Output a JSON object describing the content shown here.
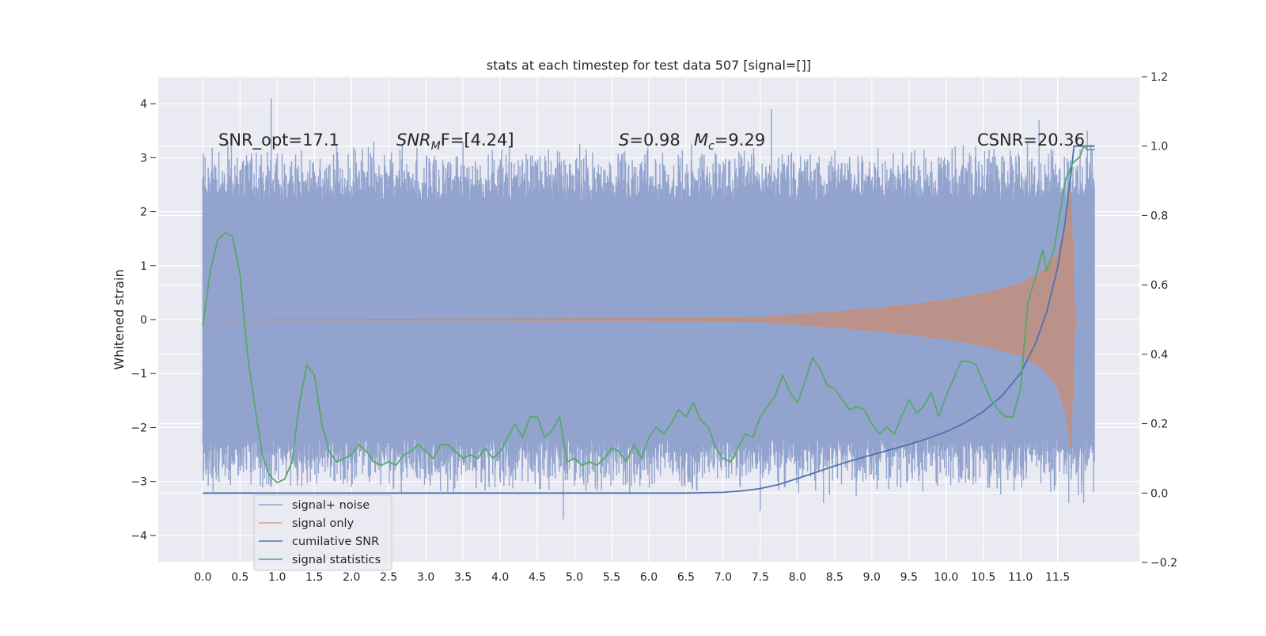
{
  "chart_data": {
    "type": "line",
    "title": "stats at each timestep for test data 507 [signal=[]]",
    "xlabel": "",
    "ylabel": "Whitened strain",
    "y2label": "",
    "xlim": [
      -0.6,
      12.6
    ],
    "ylim": [
      -4.5,
      4.5
    ],
    "y2lim": [
      -0.2,
      1.2
    ],
    "xticks": [
      "0.0",
      "0.5",
      "1.0",
      "1.5",
      "2.0",
      "2.5",
      "3.0",
      "3.5",
      "4.0",
      "4.5",
      "5.0",
      "5.5",
      "6.0",
      "6.5",
      "7.0",
      "7.5",
      "8.0",
      "8.5",
      "9.0",
      "9.5",
      "10.0",
      "10.5",
      "11.0",
      "11.5"
    ],
    "yticks": [
      "4",
      "3",
      "2",
      "1",
      "0",
      "−1",
      "−2",
      "−3",
      "−4"
    ],
    "y2ticks": [
      "1.2",
      "1.0",
      "0.8",
      "0.6",
      "0.4",
      "0.2",
      "0.0",
      "−0.2"
    ],
    "grid": true,
    "legend_position": "lower-left",
    "annotations": {
      "snr_opt": "SNR_opt=17.1",
      "snr_mf_base": "SNR",
      "snr_mf_sub": "M",
      "snr_mf_rest": "F=[4.24]",
      "s_label": "S",
      "s_value": "=0.98",
      "mc_base": "M",
      "mc_sub": "c",
      "mc_value": "=9.29",
      "csnr": "CSNR=20.36"
    },
    "series": [
      {
        "name": "signal+ noise",
        "axis": "left",
        "color": "#8da0cb",
        "noise_envelope": {
          "core_abs": 2.2,
          "peak_abs": 3.3
        },
        "max_points": [
          {
            "x": 0.92,
            "y": 4.1
          },
          {
            "x": 2.3,
            "y": 3.3
          },
          {
            "x": 3.5,
            "y": 3.3
          },
          {
            "x": 7.65,
            "y": 3.9
          },
          {
            "x": 11.25,
            "y": 3.7
          },
          {
            "x": 11.9,
            "y": 3.5
          }
        ],
        "min_points": [
          {
            "x": 4.85,
            "y": -3.7
          },
          {
            "x": 7.5,
            "y": -3.55
          },
          {
            "x": 8.35,
            "y": -3.4
          },
          {
            "x": 11.65,
            "y": -3.4
          },
          {
            "x": 11.85,
            "y": -3.4
          },
          {
            "x": 2.0,
            "y": -3.1
          }
        ]
      },
      {
        "name": "signal only",
        "axis": "left",
        "color": "#dd8452",
        "envelope": [
          {
            "x": 0.0,
            "a": 0.0
          },
          {
            "x": 7.0,
            "a": 0.02
          },
          {
            "x": 7.5,
            "a": 0.04
          },
          {
            "x": 8.0,
            "a": 0.09
          },
          {
            "x": 8.5,
            "a": 0.14
          },
          {
            "x": 9.0,
            "a": 0.2
          },
          {
            "x": 9.5,
            "a": 0.27
          },
          {
            "x": 10.0,
            "a": 0.36
          },
          {
            "x": 10.5,
            "a": 0.47
          },
          {
            "x": 11.0,
            "a": 0.66
          },
          {
            "x": 11.3,
            "a": 0.9
          },
          {
            "x": 11.5,
            "a": 1.25
          },
          {
            "x": 11.62,
            "a": 1.75
          },
          {
            "x": 11.68,
            "a": 2.4
          },
          {
            "x": 11.72,
            "a": 0.3
          },
          {
            "x": 11.75,
            "a": 0.0
          },
          {
            "x": 12.0,
            "a": 0.0
          }
        ]
      },
      {
        "name": "cumilative SNR",
        "axis": "right",
        "color": "#4c72b0",
        "points": [
          {
            "x": 0.0,
            "y": 0.0
          },
          {
            "x": 6.5,
            "y": 0.0
          },
          {
            "x": 7.0,
            "y": 0.002
          },
          {
            "x": 7.25,
            "y": 0.006
          },
          {
            "x": 7.5,
            "y": 0.013
          },
          {
            "x": 7.75,
            "y": 0.025
          },
          {
            "x": 8.0,
            "y": 0.042
          },
          {
            "x": 8.25,
            "y": 0.06
          },
          {
            "x": 8.5,
            "y": 0.078
          },
          {
            "x": 8.75,
            "y": 0.095
          },
          {
            "x": 9.0,
            "y": 0.11
          },
          {
            "x": 9.25,
            "y": 0.125
          },
          {
            "x": 9.5,
            "y": 0.14
          },
          {
            "x": 9.75,
            "y": 0.157
          },
          {
            "x": 10.0,
            "y": 0.177
          },
          {
            "x": 10.25,
            "y": 0.202
          },
          {
            "x": 10.5,
            "y": 0.235
          },
          {
            "x": 10.75,
            "y": 0.28
          },
          {
            "x": 11.0,
            "y": 0.345
          },
          {
            "x": 11.2,
            "y": 0.43
          },
          {
            "x": 11.35,
            "y": 0.52
          },
          {
            "x": 11.5,
            "y": 0.65
          },
          {
            "x": 11.6,
            "y": 0.78
          },
          {
            "x": 11.68,
            "y": 0.92
          },
          {
            "x": 11.72,
            "y": 1.0
          },
          {
            "x": 12.0,
            "y": 1.0
          }
        ]
      },
      {
        "name": "signal statistics",
        "axis": "right",
        "color": "#55a868",
        "points": [
          {
            "x": 0.0,
            "y": 0.48
          },
          {
            "x": 0.1,
            "y": 0.64
          },
          {
            "x": 0.2,
            "y": 0.73
          },
          {
            "x": 0.3,
            "y": 0.75
          },
          {
            "x": 0.4,
            "y": 0.74
          },
          {
            "x": 0.5,
            "y": 0.63
          },
          {
            "x": 0.6,
            "y": 0.4
          },
          {
            "x": 0.7,
            "y": 0.25
          },
          {
            "x": 0.8,
            "y": 0.11
          },
          {
            "x": 0.9,
            "y": 0.05
          },
          {
            "x": 1.0,
            "y": 0.03
          },
          {
            "x": 1.1,
            "y": 0.04
          },
          {
            "x": 1.2,
            "y": 0.09
          },
          {
            "x": 1.3,
            "y": 0.26
          },
          {
            "x": 1.4,
            "y": 0.37
          },
          {
            "x": 1.5,
            "y": 0.34
          },
          {
            "x": 1.6,
            "y": 0.2
          },
          {
            "x": 1.7,
            "y": 0.12
          },
          {
            "x": 1.8,
            "y": 0.09
          },
          {
            "x": 1.9,
            "y": 0.1
          },
          {
            "x": 2.0,
            "y": 0.11
          },
          {
            "x": 2.1,
            "y": 0.14
          },
          {
            "x": 2.2,
            "y": 0.12
          },
          {
            "x": 2.3,
            "y": 0.09
          },
          {
            "x": 2.4,
            "y": 0.08
          },
          {
            "x": 2.5,
            "y": 0.09
          },
          {
            "x": 2.6,
            "y": 0.08
          },
          {
            "x": 2.7,
            "y": 0.11
          },
          {
            "x": 2.8,
            "y": 0.12
          },
          {
            "x": 2.9,
            "y": 0.14
          },
          {
            "x": 3.0,
            "y": 0.12
          },
          {
            "x": 3.1,
            "y": 0.1
          },
          {
            "x": 3.2,
            "y": 0.14
          },
          {
            "x": 3.3,
            "y": 0.14
          },
          {
            "x": 3.4,
            "y": 0.12
          },
          {
            "x": 3.5,
            "y": 0.1
          },
          {
            "x": 3.6,
            "y": 0.11
          },
          {
            "x": 3.7,
            "y": 0.1
          },
          {
            "x": 3.8,
            "y": 0.13
          },
          {
            "x": 3.9,
            "y": 0.1
          },
          {
            "x": 4.0,
            "y": 0.12
          },
          {
            "x": 4.1,
            "y": 0.16
          },
          {
            "x": 4.2,
            "y": 0.2
          },
          {
            "x": 4.3,
            "y": 0.16
          },
          {
            "x": 4.4,
            "y": 0.22
          },
          {
            "x": 4.5,
            "y": 0.22
          },
          {
            "x": 4.6,
            "y": 0.16
          },
          {
            "x": 4.7,
            "y": 0.18
          },
          {
            "x": 4.8,
            "y": 0.22
          },
          {
            "x": 4.9,
            "y": 0.09
          },
          {
            "x": 5.0,
            "y": 0.1
          },
          {
            "x": 5.1,
            "y": 0.08
          },
          {
            "x": 5.2,
            "y": 0.09
          },
          {
            "x": 5.3,
            "y": 0.08
          },
          {
            "x": 5.4,
            "y": 0.1
          },
          {
            "x": 5.5,
            "y": 0.13
          },
          {
            "x": 5.6,
            "y": 0.12
          },
          {
            "x": 5.7,
            "y": 0.09
          },
          {
            "x": 5.8,
            "y": 0.14
          },
          {
            "x": 5.9,
            "y": 0.1
          },
          {
            "x": 6.0,
            "y": 0.16
          },
          {
            "x": 6.1,
            "y": 0.19
          },
          {
            "x": 6.2,
            "y": 0.17
          },
          {
            "x": 6.3,
            "y": 0.2
          },
          {
            "x": 6.4,
            "y": 0.24
          },
          {
            "x": 6.5,
            "y": 0.22
          },
          {
            "x": 6.6,
            "y": 0.26
          },
          {
            "x": 6.7,
            "y": 0.21
          },
          {
            "x": 6.8,
            "y": 0.19
          },
          {
            "x": 6.9,
            "y": 0.13
          },
          {
            "x": 7.0,
            "y": 0.1
          },
          {
            "x": 7.1,
            "y": 0.09
          },
          {
            "x": 7.2,
            "y": 0.13
          },
          {
            "x": 7.3,
            "y": 0.17
          },
          {
            "x": 7.4,
            "y": 0.16
          },
          {
            "x": 7.5,
            "y": 0.22
          },
          {
            "x": 7.6,
            "y": 0.25
          },
          {
            "x": 7.7,
            "y": 0.28
          },
          {
            "x": 7.8,
            "y": 0.34
          },
          {
            "x": 7.9,
            "y": 0.29
          },
          {
            "x": 8.0,
            "y": 0.26
          },
          {
            "x": 8.1,
            "y": 0.32
          },
          {
            "x": 8.2,
            "y": 0.39
          },
          {
            "x": 8.3,
            "y": 0.36
          },
          {
            "x": 8.4,
            "y": 0.31
          },
          {
            "x": 8.5,
            "y": 0.3
          },
          {
            "x": 8.6,
            "y": 0.27
          },
          {
            "x": 8.7,
            "y": 0.24
          },
          {
            "x": 8.8,
            "y": 0.25
          },
          {
            "x": 8.9,
            "y": 0.24
          },
          {
            "x": 9.0,
            "y": 0.2
          },
          {
            "x": 9.1,
            "y": 0.17
          },
          {
            "x": 9.2,
            "y": 0.19
          },
          {
            "x": 9.3,
            "y": 0.17
          },
          {
            "x": 9.4,
            "y": 0.22
          },
          {
            "x": 9.5,
            "y": 0.27
          },
          {
            "x": 9.6,
            "y": 0.23
          },
          {
            "x": 9.7,
            "y": 0.25
          },
          {
            "x": 9.8,
            "y": 0.29
          },
          {
            "x": 9.9,
            "y": 0.22
          },
          {
            "x": 10.0,
            "y": 0.28
          },
          {
            "x": 10.1,
            "y": 0.33
          },
          {
            "x": 10.2,
            "y": 0.38
          },
          {
            "x": 10.3,
            "y": 0.38
          },
          {
            "x": 10.4,
            "y": 0.37
          },
          {
            "x": 10.5,
            "y": 0.32
          },
          {
            "x": 10.6,
            "y": 0.27
          },
          {
            "x": 10.7,
            "y": 0.24
          },
          {
            "x": 10.8,
            "y": 0.22
          },
          {
            "x": 10.9,
            "y": 0.22
          },
          {
            "x": 11.0,
            "y": 0.3
          },
          {
            "x": 11.1,
            "y": 0.55
          },
          {
            "x": 11.2,
            "y": 0.62
          },
          {
            "x": 11.3,
            "y": 0.7
          },
          {
            "x": 11.35,
            "y": 0.64
          },
          {
            "x": 11.45,
            "y": 0.7
          },
          {
            "x": 11.55,
            "y": 0.83
          },
          {
            "x": 11.6,
            "y": 0.9
          },
          {
            "x": 11.7,
            "y": 0.95
          },
          {
            "x": 11.8,
            "y": 0.97
          },
          {
            "x": 11.85,
            "y": 1.0
          },
          {
            "x": 11.9,
            "y": 0.99
          },
          {
            "x": 12.0,
            "y": 0.99
          }
        ]
      }
    ]
  }
}
